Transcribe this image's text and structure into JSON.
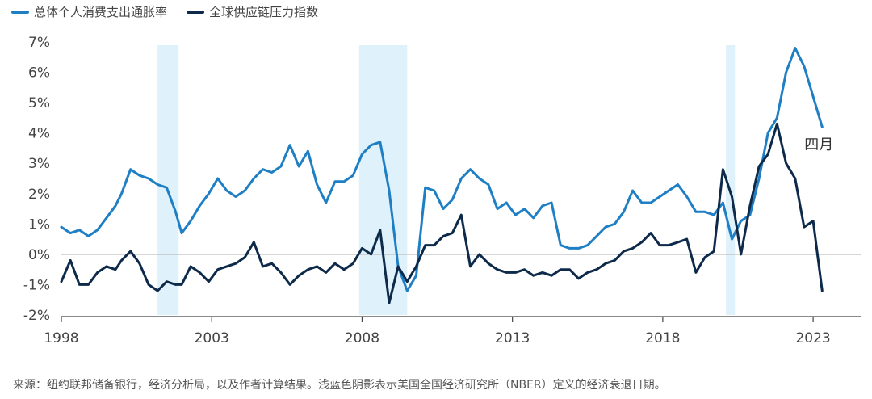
{
  "chart_data": {
    "type": "line",
    "title": "",
    "xlabel": "",
    "ylabel": "",
    "x_range": [
      1998.0,
      2023.4
    ],
    "ylim": [
      -2,
      7
    ],
    "y_ticks": [
      7,
      6,
      5,
      4,
      3,
      2,
      1,
      0,
      -1,
      -2
    ],
    "y_tick_labels": [
      "7%",
      "6%",
      "5%",
      "4%",
      "3%",
      "2%",
      "1%",
      "0%",
      "-1%",
      "-2%"
    ],
    "x_ticks": [
      1998,
      2003,
      2008,
      2013,
      2018,
      2023
    ],
    "x_tick_labels": [
      "1998",
      "2003",
      "2008",
      "2013",
      "2018",
      "2023"
    ],
    "legend": {
      "placement": "top-left"
    },
    "recessions": [
      [
        2001.2,
        2001.9
      ],
      [
        2007.9,
        2009.5
      ],
      [
        2020.1,
        2020.4
      ]
    ],
    "annotation": {
      "text": "四月",
      "x": 2023.3,
      "y": 4.2
    },
    "source_note": "来源：纽约联邦储备银行，经济分析局，以及作者计算结果。浅蓝色阴影表示美国全国经济研究所（NBER）定义的经济衰退日期。",
    "series": [
      {
        "name": "总体个人消费支出通胀率",
        "color": "#1f7fc4",
        "x": [
          1998.0,
          1998.3,
          1998.6,
          1998.9,
          1999.2,
          1999.5,
          1999.8,
          2000.0,
          2000.3,
          2000.6,
          2000.9,
          2001.2,
          2001.5,
          2001.8,
          2002.0,
          2002.3,
          2002.6,
          2002.9,
          2003.2,
          2003.5,
          2003.8,
          2004.1,
          2004.4,
          2004.7,
          2005.0,
          2005.3,
          2005.6,
          2005.9,
          2006.2,
          2006.5,
          2006.8,
          2007.1,
          2007.4,
          2007.7,
          2008.0,
          2008.3,
          2008.6,
          2008.9,
          2009.2,
          2009.5,
          2009.8,
          2010.1,
          2010.4,
          2010.7,
          2011.0,
          2011.3,
          2011.6,
          2011.9,
          2012.2,
          2012.5,
          2012.8,
          2013.1,
          2013.4,
          2013.7,
          2014.0,
          2014.3,
          2014.6,
          2014.9,
          2015.2,
          2015.5,
          2015.8,
          2016.1,
          2016.4,
          2016.7,
          2017.0,
          2017.3,
          2017.6,
          2017.9,
          2018.2,
          2018.5,
          2018.8,
          2019.1,
          2019.4,
          2019.7,
          2020.0,
          2020.3,
          2020.6,
          2020.9,
          2021.2,
          2021.5,
          2021.8,
          2022.1,
          2022.4,
          2022.7,
          2023.0,
          2023.3
        ],
        "y": [
          0.9,
          0.7,
          0.8,
          0.6,
          0.8,
          1.2,
          1.6,
          2.0,
          2.8,
          2.6,
          2.5,
          2.3,
          2.2,
          1.4,
          0.7,
          1.1,
          1.6,
          2.0,
          2.5,
          2.1,
          1.9,
          2.1,
          2.5,
          2.8,
          2.7,
          2.9,
          3.6,
          2.9,
          3.4,
          2.3,
          1.7,
          2.4,
          2.4,
          2.6,
          3.3,
          3.6,
          3.7,
          2.1,
          -0.4,
          -1.2,
          -0.7,
          2.2,
          2.1,
          1.5,
          1.8,
          2.5,
          2.8,
          2.5,
          2.3,
          1.5,
          1.7,
          1.3,
          1.5,
          1.2,
          1.6,
          1.7,
          0.3,
          0.2,
          0.2,
          0.3,
          0.6,
          0.9,
          1.0,
          1.4,
          2.1,
          1.7,
          1.7,
          1.9,
          2.1,
          2.3,
          1.9,
          1.4,
          1.4,
          1.3,
          1.7,
          0.5,
          1.1,
          1.3,
          2.5,
          4.0,
          4.5,
          6.0,
          6.8,
          6.2,
          5.2,
          4.2
        ]
      },
      {
        "name": "全球供应链压力指数",
        "color": "#0d2a4a",
        "x": [
          1998.0,
          1998.3,
          1998.6,
          1998.9,
          1999.2,
          1999.5,
          1999.8,
          2000.0,
          2000.3,
          2000.6,
          2000.9,
          2001.2,
          2001.5,
          2001.8,
          2002.0,
          2002.3,
          2002.6,
          2002.9,
          2003.2,
          2003.5,
          2003.8,
          2004.1,
          2004.4,
          2004.7,
          2005.0,
          2005.3,
          2005.6,
          2005.9,
          2006.2,
          2006.5,
          2006.8,
          2007.1,
          2007.4,
          2007.7,
          2008.0,
          2008.3,
          2008.6,
          2008.9,
          2009.2,
          2009.5,
          2009.8,
          2010.1,
          2010.4,
          2010.7,
          2011.0,
          2011.3,
          2011.6,
          2011.9,
          2012.2,
          2012.5,
          2012.8,
          2013.1,
          2013.4,
          2013.7,
          2014.0,
          2014.3,
          2014.6,
          2014.9,
          2015.2,
          2015.5,
          2015.8,
          2016.1,
          2016.4,
          2016.7,
          2017.0,
          2017.3,
          2017.6,
          2017.9,
          2018.2,
          2018.5,
          2018.8,
          2019.1,
          2019.4,
          2019.7,
          2020.0,
          2020.3,
          2020.6,
          2020.9,
          2021.2,
          2021.5,
          2021.8,
          2022.1,
          2022.4,
          2022.7,
          2023.0,
          2023.3
        ],
        "y": [
          -0.9,
          -0.2,
          -1.0,
          -1.0,
          -0.6,
          -0.4,
          -0.5,
          -0.2,
          0.1,
          -0.3,
          -1.0,
          -1.2,
          -0.9,
          -1.0,
          -1.0,
          -0.4,
          -0.6,
          -0.9,
          -0.5,
          -0.4,
          -0.3,
          -0.1,
          0.4,
          -0.4,
          -0.3,
          -0.6,
          -1.0,
          -0.7,
          -0.5,
          -0.4,
          -0.6,
          -0.3,
          -0.5,
          -0.3,
          0.2,
          0.0,
          0.8,
          -1.6,
          -0.4,
          -0.9,
          -0.4,
          0.3,
          0.3,
          0.6,
          0.7,
          1.3,
          -0.4,
          0.0,
          -0.3,
          -0.5,
          -0.6,
          -0.6,
          -0.5,
          -0.7,
          -0.6,
          -0.7,
          -0.5,
          -0.5,
          -0.8,
          -0.6,
          -0.5,
          -0.3,
          -0.2,
          0.1,
          0.2,
          0.4,
          0.7,
          0.3,
          0.3,
          0.4,
          0.5,
          -0.6,
          -0.1,
          0.1,
          2.8,
          1.9,
          0.0,
          1.6,
          2.9,
          3.3,
          4.3,
          3.0,
          2.5,
          0.9,
          1.1,
          -1.2
        ]
      }
    ]
  }
}
